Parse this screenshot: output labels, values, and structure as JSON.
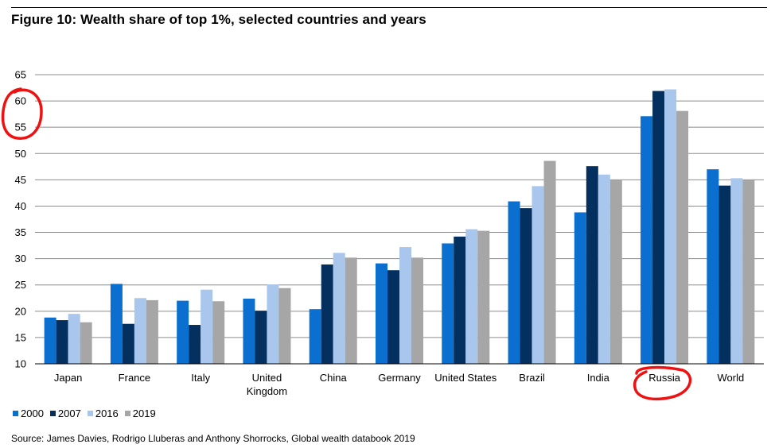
{
  "figure": {
    "title": "Figure 10: Wealth share of top 1%, selected countries and years",
    "source": "Source: James Davies, Rodrigo Lluberas and Anthony Shorrocks, Global wealth databook 2019"
  },
  "chart_data": {
    "type": "bar",
    "title": "Figure 10: Wealth share of top 1%, selected countries and years",
    "xlabel": "",
    "ylabel": "",
    "ylim": [
      10,
      65
    ],
    "yticks": [
      10,
      15,
      20,
      25,
      30,
      35,
      40,
      45,
      50,
      55,
      60,
      65
    ],
    "grid": true,
    "legend_position": "bottom-left",
    "categories": [
      [
        "Japan"
      ],
      [
        "France"
      ],
      [
        "Italy"
      ],
      [
        "United",
        "Kingdom"
      ],
      [
        "China"
      ],
      [
        "Germany"
      ],
      [
        "United States"
      ],
      [
        "Brazil"
      ],
      [
        "India"
      ],
      [
        "Russia"
      ],
      [
        "World"
      ]
    ],
    "series": [
      {
        "name": "2000",
        "color": "#0a6fcf",
        "values": [
          18.8,
          25.2,
          22.0,
          22.4,
          20.4,
          29.1,
          32.9,
          40.9,
          38.8,
          57.1,
          47.0
        ]
      },
      {
        "name": "2007",
        "color": "#04305f",
        "values": [
          18.3,
          17.6,
          17.4,
          20.1,
          28.9,
          27.8,
          34.2,
          39.6,
          47.6,
          61.9,
          43.9
        ]
      },
      {
        "name": "2016",
        "color": "#a9c6ec",
        "values": [
          19.5,
          22.5,
          24.1,
          25.1,
          31.1,
          32.2,
          35.6,
          43.8,
          46.0,
          62.2,
          45.3
        ]
      },
      {
        "name": "2019",
        "color": "#a6a6a6",
        "values": [
          17.9,
          22.1,
          21.9,
          24.4,
          30.2,
          30.2,
          35.3,
          48.6,
          44.9,
          58.1,
          45.0
        ]
      }
    ],
    "annotations": [
      "red hand-drawn circle around the 55-60 y-axis labels",
      "red hand-drawn circle around the Russia label"
    ]
  }
}
